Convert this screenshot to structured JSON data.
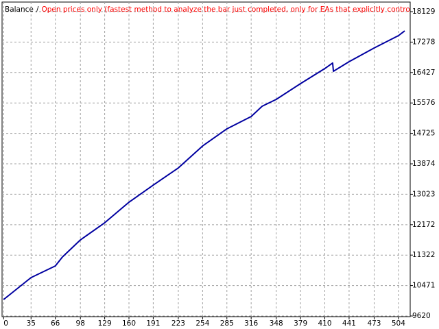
{
  "chart_data": {
    "type": "line",
    "series": [
      {
        "name": "Balance",
        "color": "#0000a0",
        "x": [
          0,
          35,
          66,
          75,
          98,
          129,
          160,
          191,
          223,
          254,
          285,
          316,
          330,
          348,
          379,
          410,
          420,
          421,
          441,
          473,
          504,
          512
        ],
        "values": [
          10080,
          10693,
          11019,
          11268,
          11747,
          12226,
          12801,
          13280,
          13759,
          14373,
          14852,
          15197,
          15484,
          15676,
          16117,
          16538,
          16692,
          16461,
          16730,
          17113,
          17458,
          17592
        ]
      }
    ],
    "separator": "/",
    "subtitle": "Open prices only (fastest method to analyze the bar just completed, only for EAs that explicitly control bar openin",
    "subtitle_color": "#ff0000",
    "xlim": [
      -2,
      519
    ],
    "xticks": [
      0,
      35,
      66,
      98,
      129,
      160,
      191,
      223,
      254,
      285,
      316,
      348,
      379,
      410,
      441,
      473,
      504
    ],
    "ylim": [
      9620,
      18359
    ],
    "yticks": [
      9620,
      10471,
      11322,
      12172,
      13023,
      13874,
      14725,
      15576,
      16427,
      17278,
      18129
    ],
    "grid": true
  }
}
